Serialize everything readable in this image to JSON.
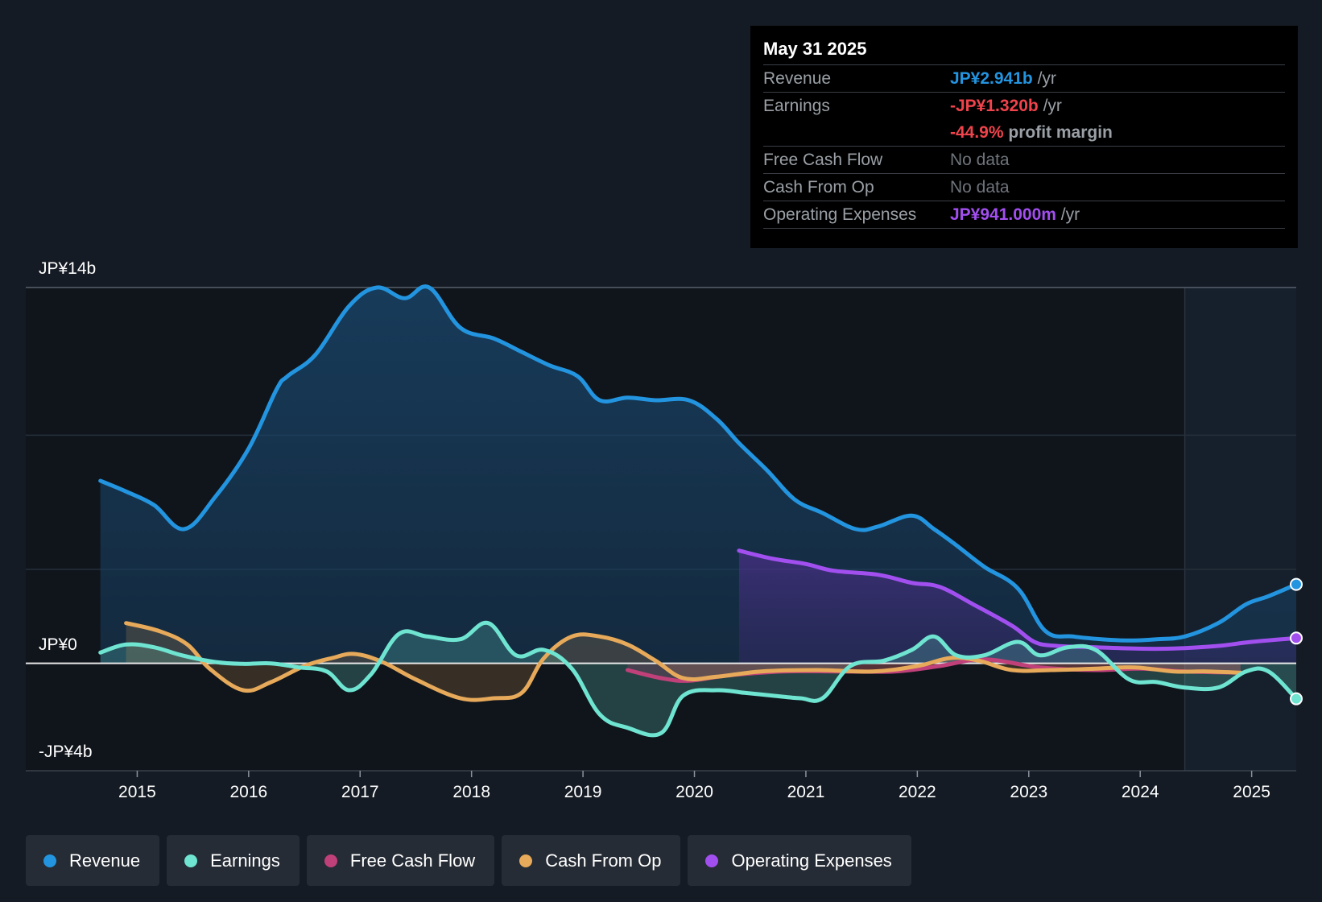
{
  "tooltip": {
    "date": "May 31 2025",
    "revenue_label": "Revenue",
    "revenue_value": "JP¥2.941b",
    "earnings_label": "Earnings",
    "earnings_value": "-JP¥1.320b",
    "profit_margin_value": "-44.9%",
    "profit_margin_suffix": "profit margin",
    "fcf_label": "Free Cash Flow",
    "fcf_value": "No data",
    "cfo_label": "Cash From Op",
    "cfo_value": "No data",
    "opex_label": "Operating Expenses",
    "opex_value": "JP¥941.000m",
    "per_year": "/yr"
  },
  "legend": [
    {
      "label": "Revenue",
      "color": "#2394df"
    },
    {
      "label": "Earnings",
      "color": "#6ee4d1"
    },
    {
      "label": "Free Cash Flow",
      "color": "#c0407a"
    },
    {
      "label": "Cash From Op",
      "color": "#e7a95a"
    },
    {
      "label": "Operating Expenses",
      "color": "#a24ff0"
    }
  ],
  "chart_data": {
    "type": "line",
    "currency": "JP¥",
    "y_unit": "billions",
    "y_labels": {
      "top": "JP¥14b",
      "zero": "JP¥0",
      "bottom": "-JP¥4b"
    },
    "ylim": [
      -4,
      14
    ],
    "xlim": [
      2014.0,
      2025.4
    ],
    "x_ticks": [
      "2015",
      "2016",
      "2017",
      "2018",
      "2019",
      "2020",
      "2021",
      "2022",
      "2023",
      "2024",
      "2025"
    ],
    "forecast_start": 2024.4,
    "colors": {
      "Revenue": "#2394df",
      "Earnings": "#6ee4d1",
      "Free Cash Flow": "#c0407a",
      "Cash From Op": "#e7a95a",
      "Operating Expenses": "#a24ff0"
    },
    "series": [
      {
        "name": "Revenue",
        "x": [
          2014.67,
          2014.9,
          2015.15,
          2015.42,
          2015.7,
          2016.0,
          2016.25,
          2016.35,
          2016.6,
          2016.9,
          2017.15,
          2017.4,
          2017.62,
          2017.9,
          2018.2,
          2018.45,
          2018.7,
          2018.95,
          2019.15,
          2019.4,
          2019.65,
          2019.95,
          2020.2,
          2020.4,
          2020.65,
          2020.9,
          2021.15,
          2021.45,
          2021.65,
          2021.95,
          2022.15,
          2022.35,
          2022.6,
          2022.9,
          2023.15,
          2023.4,
          2023.65,
          2023.9,
          2024.15,
          2024.4,
          2024.7,
          2024.95,
          2025.15,
          2025.4
        ],
        "values": [
          6.8,
          6.4,
          5.9,
          5.0,
          6.2,
          8.0,
          10.2,
          10.7,
          11.5,
          13.3,
          14.0,
          13.6,
          14.0,
          12.5,
          12.1,
          11.6,
          11.1,
          10.7,
          9.8,
          9.9,
          9.8,
          9.8,
          9.1,
          8.2,
          7.2,
          6.1,
          5.6,
          5.0,
          5.1,
          5.5,
          5.0,
          4.4,
          3.6,
          2.8,
          1.2,
          1.0,
          0.9,
          0.85,
          0.9,
          1.0,
          1.5,
          2.2,
          2.5,
          2.941
        ]
      },
      {
        "name": "Earnings",
        "x": [
          2014.67,
          2014.9,
          2015.15,
          2015.4,
          2015.7,
          2015.95,
          2016.2,
          2016.45,
          2016.7,
          2016.9,
          2017.1,
          2017.35,
          2017.6,
          2017.9,
          2018.15,
          2018.4,
          2018.65,
          2018.9,
          2019.15,
          2019.4,
          2019.7,
          2019.9,
          2020.2,
          2020.45,
          2020.7,
          2020.95,
          2021.15,
          2021.4,
          2021.7,
          2021.95,
          2022.15,
          2022.35,
          2022.6,
          2022.9,
          2023.1,
          2023.35,
          2023.6,
          2023.9,
          2024.15,
          2024.4,
          2024.7,
          2024.95,
          2025.15,
          2025.4
        ],
        "values": [
          0.4,
          0.7,
          0.6,
          0.3,
          0.05,
          -0.02,
          0.0,
          -0.15,
          -0.3,
          -1.0,
          -0.4,
          1.1,
          1.0,
          0.9,
          1.5,
          0.3,
          0.5,
          -0.2,
          -1.9,
          -2.4,
          -2.6,
          -1.2,
          -1.0,
          -1.1,
          -1.2,
          -1.3,
          -1.3,
          -0.1,
          0.1,
          0.5,
          1.0,
          0.3,
          0.3,
          0.8,
          0.3,
          0.6,
          0.5,
          -0.6,
          -0.7,
          -0.9,
          -0.9,
          -0.3,
          -0.3,
          -1.32
        ]
      },
      {
        "name": "Free Cash Flow",
        "x": [
          2019.4,
          2019.7,
          2019.95,
          2020.3,
          2020.8,
          2021.3,
          2021.8,
          2022.2,
          2022.6,
          2023.1,
          2023.6,
          2024.0,
          2024.4,
          2024.9
        ],
        "values": [
          -0.25,
          -0.55,
          -0.65,
          -0.45,
          -0.3,
          -0.3,
          -0.3,
          -0.1,
          0.15,
          -0.15,
          -0.25,
          -0.2,
          -0.3,
          -0.35
        ]
      },
      {
        "name": "Cash From Op",
        "x": [
          2014.9,
          2015.2,
          2015.45,
          2015.65,
          2015.95,
          2016.2,
          2016.5,
          2016.75,
          2016.95,
          2017.2,
          2017.5,
          2017.9,
          2018.2,
          2018.45,
          2018.65,
          2018.9,
          2019.15,
          2019.4,
          2019.65,
          2019.9,
          2020.2,
          2020.6,
          2021.1,
          2021.6,
          2022.0,
          2022.3,
          2022.55,
          2022.85,
          2023.2,
          2023.6,
          2023.95,
          2024.3,
          2024.6,
          2024.9
        ],
        "values": [
          1.5,
          1.2,
          0.7,
          -0.2,
          -1.0,
          -0.7,
          -0.1,
          0.2,
          0.35,
          0.05,
          -0.6,
          -1.3,
          -1.3,
          -1.1,
          0.2,
          1.0,
          1.0,
          0.7,
          0.1,
          -0.55,
          -0.5,
          -0.3,
          -0.25,
          -0.3,
          -0.1,
          0.2,
          0.1,
          -0.25,
          -0.25,
          -0.2,
          -0.15,
          -0.3,
          -0.3,
          -0.35
        ]
      },
      {
        "name": "Operating Expenses",
        "x": [
          2020.4,
          2020.7,
          2021.0,
          2021.25,
          2021.65,
          2021.95,
          2022.2,
          2022.5,
          2022.85,
          2023.05,
          2023.25,
          2023.6,
          2023.95,
          2024.3,
          2024.7,
          2025.0,
          2025.4
        ],
        "values": [
          4.2,
          3.9,
          3.7,
          3.45,
          3.3,
          3.0,
          2.85,
          2.2,
          1.4,
          0.8,
          0.65,
          0.6,
          0.55,
          0.55,
          0.65,
          0.8,
          0.941
        ]
      }
    ]
  }
}
